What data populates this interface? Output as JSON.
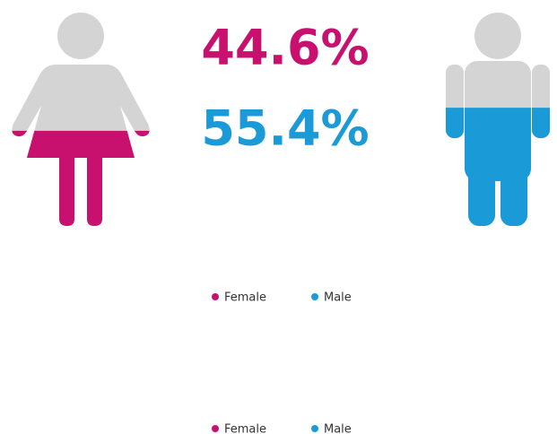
{
  "chart_data": {
    "type": "pictorial",
    "categories": [
      "Female",
      "Male"
    ],
    "values": [
      44.6,
      55.4
    ],
    "value_labels": [
      "44.6%",
      "55.4%"
    ],
    "colors": [
      "#c8106f",
      "#1a9ad6"
    ],
    "empty_color": "#d4d4d4",
    "ylim": [
      0,
      100
    ]
  }
}
